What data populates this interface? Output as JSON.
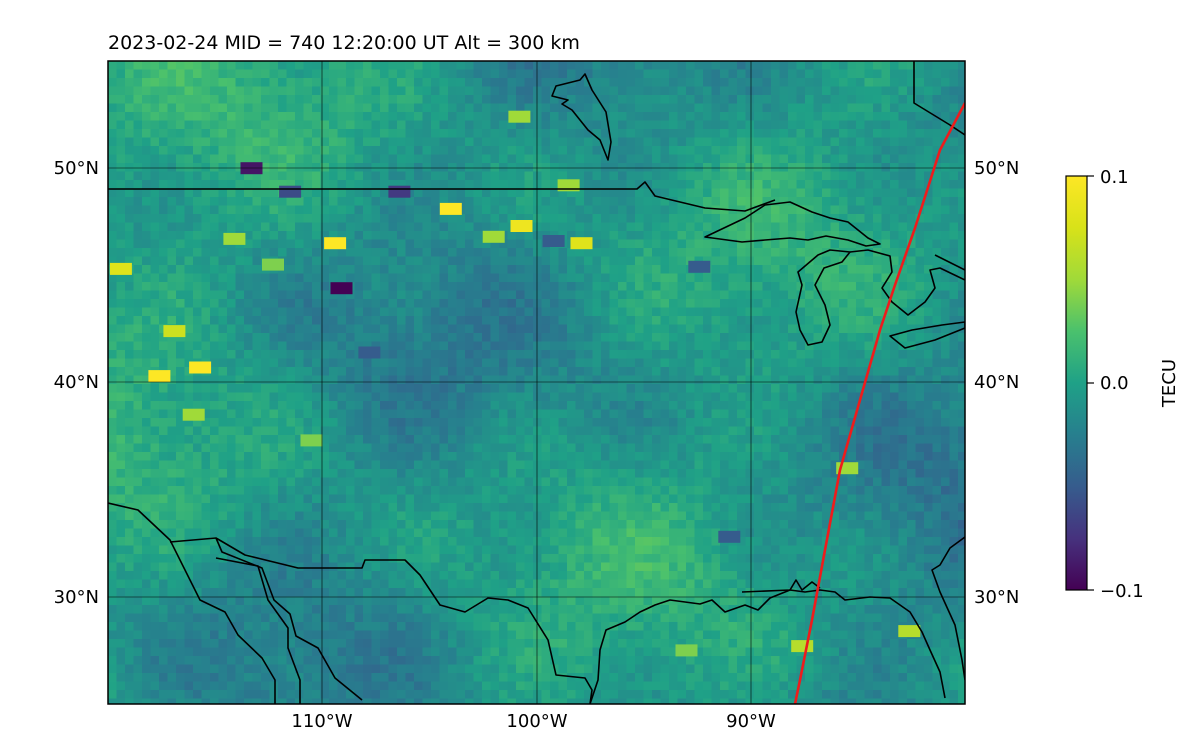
{
  "title": "2023-02-24  MID = 740    12:20:00  UT  Alt = 300 km",
  "map": {
    "lat_ticks": [
      "50°N",
      "40°N",
      "30°N"
    ],
    "lon_ticks": [
      "110°W",
      "100°W",
      "90°W"
    ],
    "lat_values": [
      50,
      40,
      30
    ],
    "lon_values": [
      -110,
      -100,
      -90
    ],
    "lon_range": [
      -120,
      -80
    ],
    "lat_range": [
      25,
      55
    ],
    "track_color": "#ee1c1c"
  },
  "colorbar": {
    "label": "TECU",
    "ticks": [
      "0.1",
      "0.0",
      "−0.1"
    ],
    "values": [
      0.1,
      0.0,
      -0.1
    ],
    "colormap": "viridis"
  },
  "hotspots": [
    {
      "lon": -113.3,
      "lat": 50.0,
      "v": -0.09
    },
    {
      "lon": -109.4,
      "lat": 46.5,
      "v": 0.1
    },
    {
      "lon": -109.1,
      "lat": 44.4,
      "v": -0.1
    },
    {
      "lon": -104.0,
      "lat": 48.1,
      "v": 0.1
    },
    {
      "lon": -100.7,
      "lat": 47.3,
      "v": 0.09
    },
    {
      "lon": -97.9,
      "lat": 46.5,
      "v": 0.08
    },
    {
      "lon": -119.4,
      "lat": 45.3,
      "v": 0.08
    },
    {
      "lon": -116.9,
      "lat": 42.4,
      "v": 0.07
    },
    {
      "lon": -115.7,
      "lat": 40.7,
      "v": 0.1
    },
    {
      "lon": -117.6,
      "lat": 40.3,
      "v": 0.1
    },
    {
      "lon": -114.1,
      "lat": 46.7,
      "v": 0.05
    },
    {
      "lon": -112.3,
      "lat": 45.5,
      "v": 0.04
    },
    {
      "lon": -102.0,
      "lat": 46.8,
      "v": 0.05
    },
    {
      "lon": -98.5,
      "lat": 49.2,
      "v": 0.05
    },
    {
      "lon": -106.4,
      "lat": 48.9,
      "v": -0.07
    },
    {
      "lon": -111.5,
      "lat": 48.9,
      "v": -0.06
    },
    {
      "lon": -107.8,
      "lat": 41.4,
      "v": -0.05
    },
    {
      "lon": -99.2,
      "lat": 46.6,
      "v": -0.05
    },
    {
      "lon": -92.4,
      "lat": 45.4,
      "v": -0.05
    },
    {
      "lon": -91.0,
      "lat": 32.8,
      "v": -0.05
    },
    {
      "lon": -87.6,
      "lat": 27.7,
      "v": 0.06
    },
    {
      "lon": -82.6,
      "lat": 28.4,
      "v": 0.06
    },
    {
      "lon": -85.5,
      "lat": 36.0,
      "v": 0.05
    },
    {
      "lon": -100.8,
      "lat": 52.4,
      "v": 0.05
    },
    {
      "lon": -93.0,
      "lat": 27.5,
      "v": 0.04
    },
    {
      "lon": -116.0,
      "lat": 38.5,
      "v": 0.05
    },
    {
      "lon": -110.5,
      "lat": 37.3,
      "v": 0.04
    }
  ]
}
